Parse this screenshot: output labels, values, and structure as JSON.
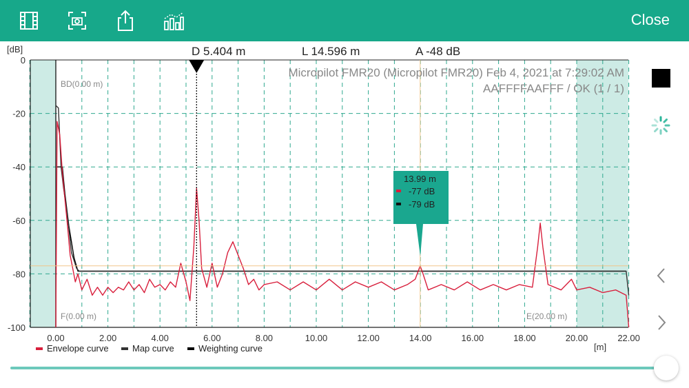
{
  "toolbar": {
    "icons": [
      "film-icon",
      "camera-capture-icon",
      "share-icon",
      "chart-compare-icon"
    ],
    "close_label": "Close"
  },
  "header": {
    "distance": "D 5.404 m",
    "level": "L 14.596 m",
    "amplitude": "A -48 dB",
    "device_line": "Micropilot FMR20 (Micropilot FMR20) Feb 4, 2021 at 7:29:02 AM",
    "status_line": "AAFFFFAAFFF / OK (1 / 1)"
  },
  "markers": {
    "bd": "BD(0.00 m)",
    "f": "F(0.00 m)",
    "e": "E(20.00 m)"
  },
  "tooltip": {
    "distance": "13.99 m",
    "envelope": "-77 dB",
    "map": "-79 dB"
  },
  "legend": [
    {
      "label": "Envelope curve",
      "color": "#d81f3c"
    },
    {
      "label": "Map curve",
      "color": "#333333"
    },
    {
      "label": "Weighting curve",
      "color": "#000000"
    }
  ],
  "chart_data": {
    "type": "line",
    "ylabel": "[dB]",
    "xlabel": "[m]",
    "xlim": [
      -1,
      22
    ],
    "ylim": [
      -100,
      0
    ],
    "x_ticks": [
      "0.00",
      "2.00",
      "4.00",
      "6.00",
      "8.00",
      "10.00",
      "12.00",
      "14.00",
      "16.00",
      "18.00",
      "20.00",
      "22.00"
    ],
    "y_ticks": [
      "0",
      "-20",
      "-40",
      "-60",
      "-80",
      "-100"
    ],
    "grid": true,
    "legend_position": "bottom-left",
    "distance_marker_x": 5.404,
    "cursor_x": 13.99,
    "threshold_y": -77,
    "series": [
      {
        "name": "Envelope curve",
        "color": "#d81f3c",
        "points": [
          [
            0.0,
            -100
          ],
          [
            0.05,
            -23
          ],
          [
            0.15,
            -28
          ],
          [
            0.25,
            -42
          ],
          [
            0.35,
            -52
          ],
          [
            0.45,
            -62
          ],
          [
            0.55,
            -73
          ],
          [
            0.65,
            -78
          ],
          [
            0.75,
            -83
          ],
          [
            0.85,
            -80
          ],
          [
            1.0,
            -86
          ],
          [
            1.2,
            -82
          ],
          [
            1.4,
            -88
          ],
          [
            1.6,
            -85
          ],
          [
            1.8,
            -88
          ],
          [
            2.0,
            -85
          ],
          [
            2.2,
            -87
          ],
          [
            2.4,
            -85
          ],
          [
            2.6,
            -86
          ],
          [
            2.8,
            -83
          ],
          [
            3.0,
            -86
          ],
          [
            3.2,
            -84
          ],
          [
            3.4,
            -87
          ],
          [
            3.6,
            -82
          ],
          [
            3.8,
            -85
          ],
          [
            4.0,
            -84
          ],
          [
            4.2,
            -86
          ],
          [
            4.4,
            -83
          ],
          [
            4.6,
            -85
          ],
          [
            4.8,
            -76
          ],
          [
            5.0,
            -83
          ],
          [
            5.15,
            -90
          ],
          [
            5.3,
            -70
          ],
          [
            5.404,
            -48
          ],
          [
            5.5,
            -60
          ],
          [
            5.6,
            -78
          ],
          [
            5.8,
            -85
          ],
          [
            6.0,
            -76
          ],
          [
            6.2,
            -85
          ],
          [
            6.4,
            -80
          ],
          [
            6.6,
            -72
          ],
          [
            6.8,
            -68
          ],
          [
            7.0,
            -73
          ],
          [
            7.2,
            -78
          ],
          [
            7.4,
            -84
          ],
          [
            7.6,
            -82
          ],
          [
            7.8,
            -86
          ],
          [
            8.0,
            -84
          ],
          [
            8.5,
            -83
          ],
          [
            9.0,
            -86
          ],
          [
            9.5,
            -83
          ],
          [
            10.0,
            -86
          ],
          [
            10.5,
            -82
          ],
          [
            11.0,
            -86
          ],
          [
            11.5,
            -83
          ],
          [
            12.0,
            -85
          ],
          [
            12.5,
            -83
          ],
          [
            13.0,
            -86
          ],
          [
            13.5,
            -84
          ],
          [
            13.8,
            -82
          ],
          [
            13.99,
            -77
          ],
          [
            14.1,
            -80
          ],
          [
            14.3,
            -86
          ],
          [
            14.8,
            -84
          ],
          [
            15.3,
            -86
          ],
          [
            15.8,
            -83
          ],
          [
            16.3,
            -86
          ],
          [
            16.8,
            -84
          ],
          [
            17.3,
            -86
          ],
          [
            17.8,
            -84
          ],
          [
            18.3,
            -85
          ],
          [
            18.5,
            -70
          ],
          [
            18.6,
            -61
          ],
          [
            18.7,
            -70
          ],
          [
            18.9,
            -84
          ],
          [
            19.4,
            -86
          ],
          [
            19.8,
            -82
          ],
          [
            20.0,
            -86
          ],
          [
            20.5,
            -85
          ],
          [
            21.0,
            -87
          ],
          [
            21.5,
            -86
          ],
          [
            21.9,
            -88
          ],
          [
            22.0,
            -100
          ]
        ]
      },
      {
        "name": "Map curve",
        "color": "#333333",
        "points": [
          [
            0.0,
            -100
          ],
          [
            0.0,
            -17
          ],
          [
            0.1,
            -18
          ],
          [
            0.2,
            -40
          ],
          [
            0.3,
            -48
          ],
          [
            0.4,
            -55
          ],
          [
            0.5,
            -63
          ],
          [
            0.6,
            -72
          ],
          [
            0.8,
            -78
          ],
          [
            0.9,
            -79
          ],
          [
            21.9,
            -79
          ],
          [
            22.0,
            -88
          ]
        ]
      },
      {
        "name": "Weighting curve",
        "color": "#000000",
        "points": [
          [
            0.05,
            -40
          ],
          [
            0.25,
            -40
          ],
          [
            0.35,
            -50
          ],
          [
            0.5,
            -62
          ],
          [
            0.7,
            -74
          ],
          [
            0.85,
            -79
          ],
          [
            21.9,
            -79
          ]
        ]
      }
    ]
  }
}
